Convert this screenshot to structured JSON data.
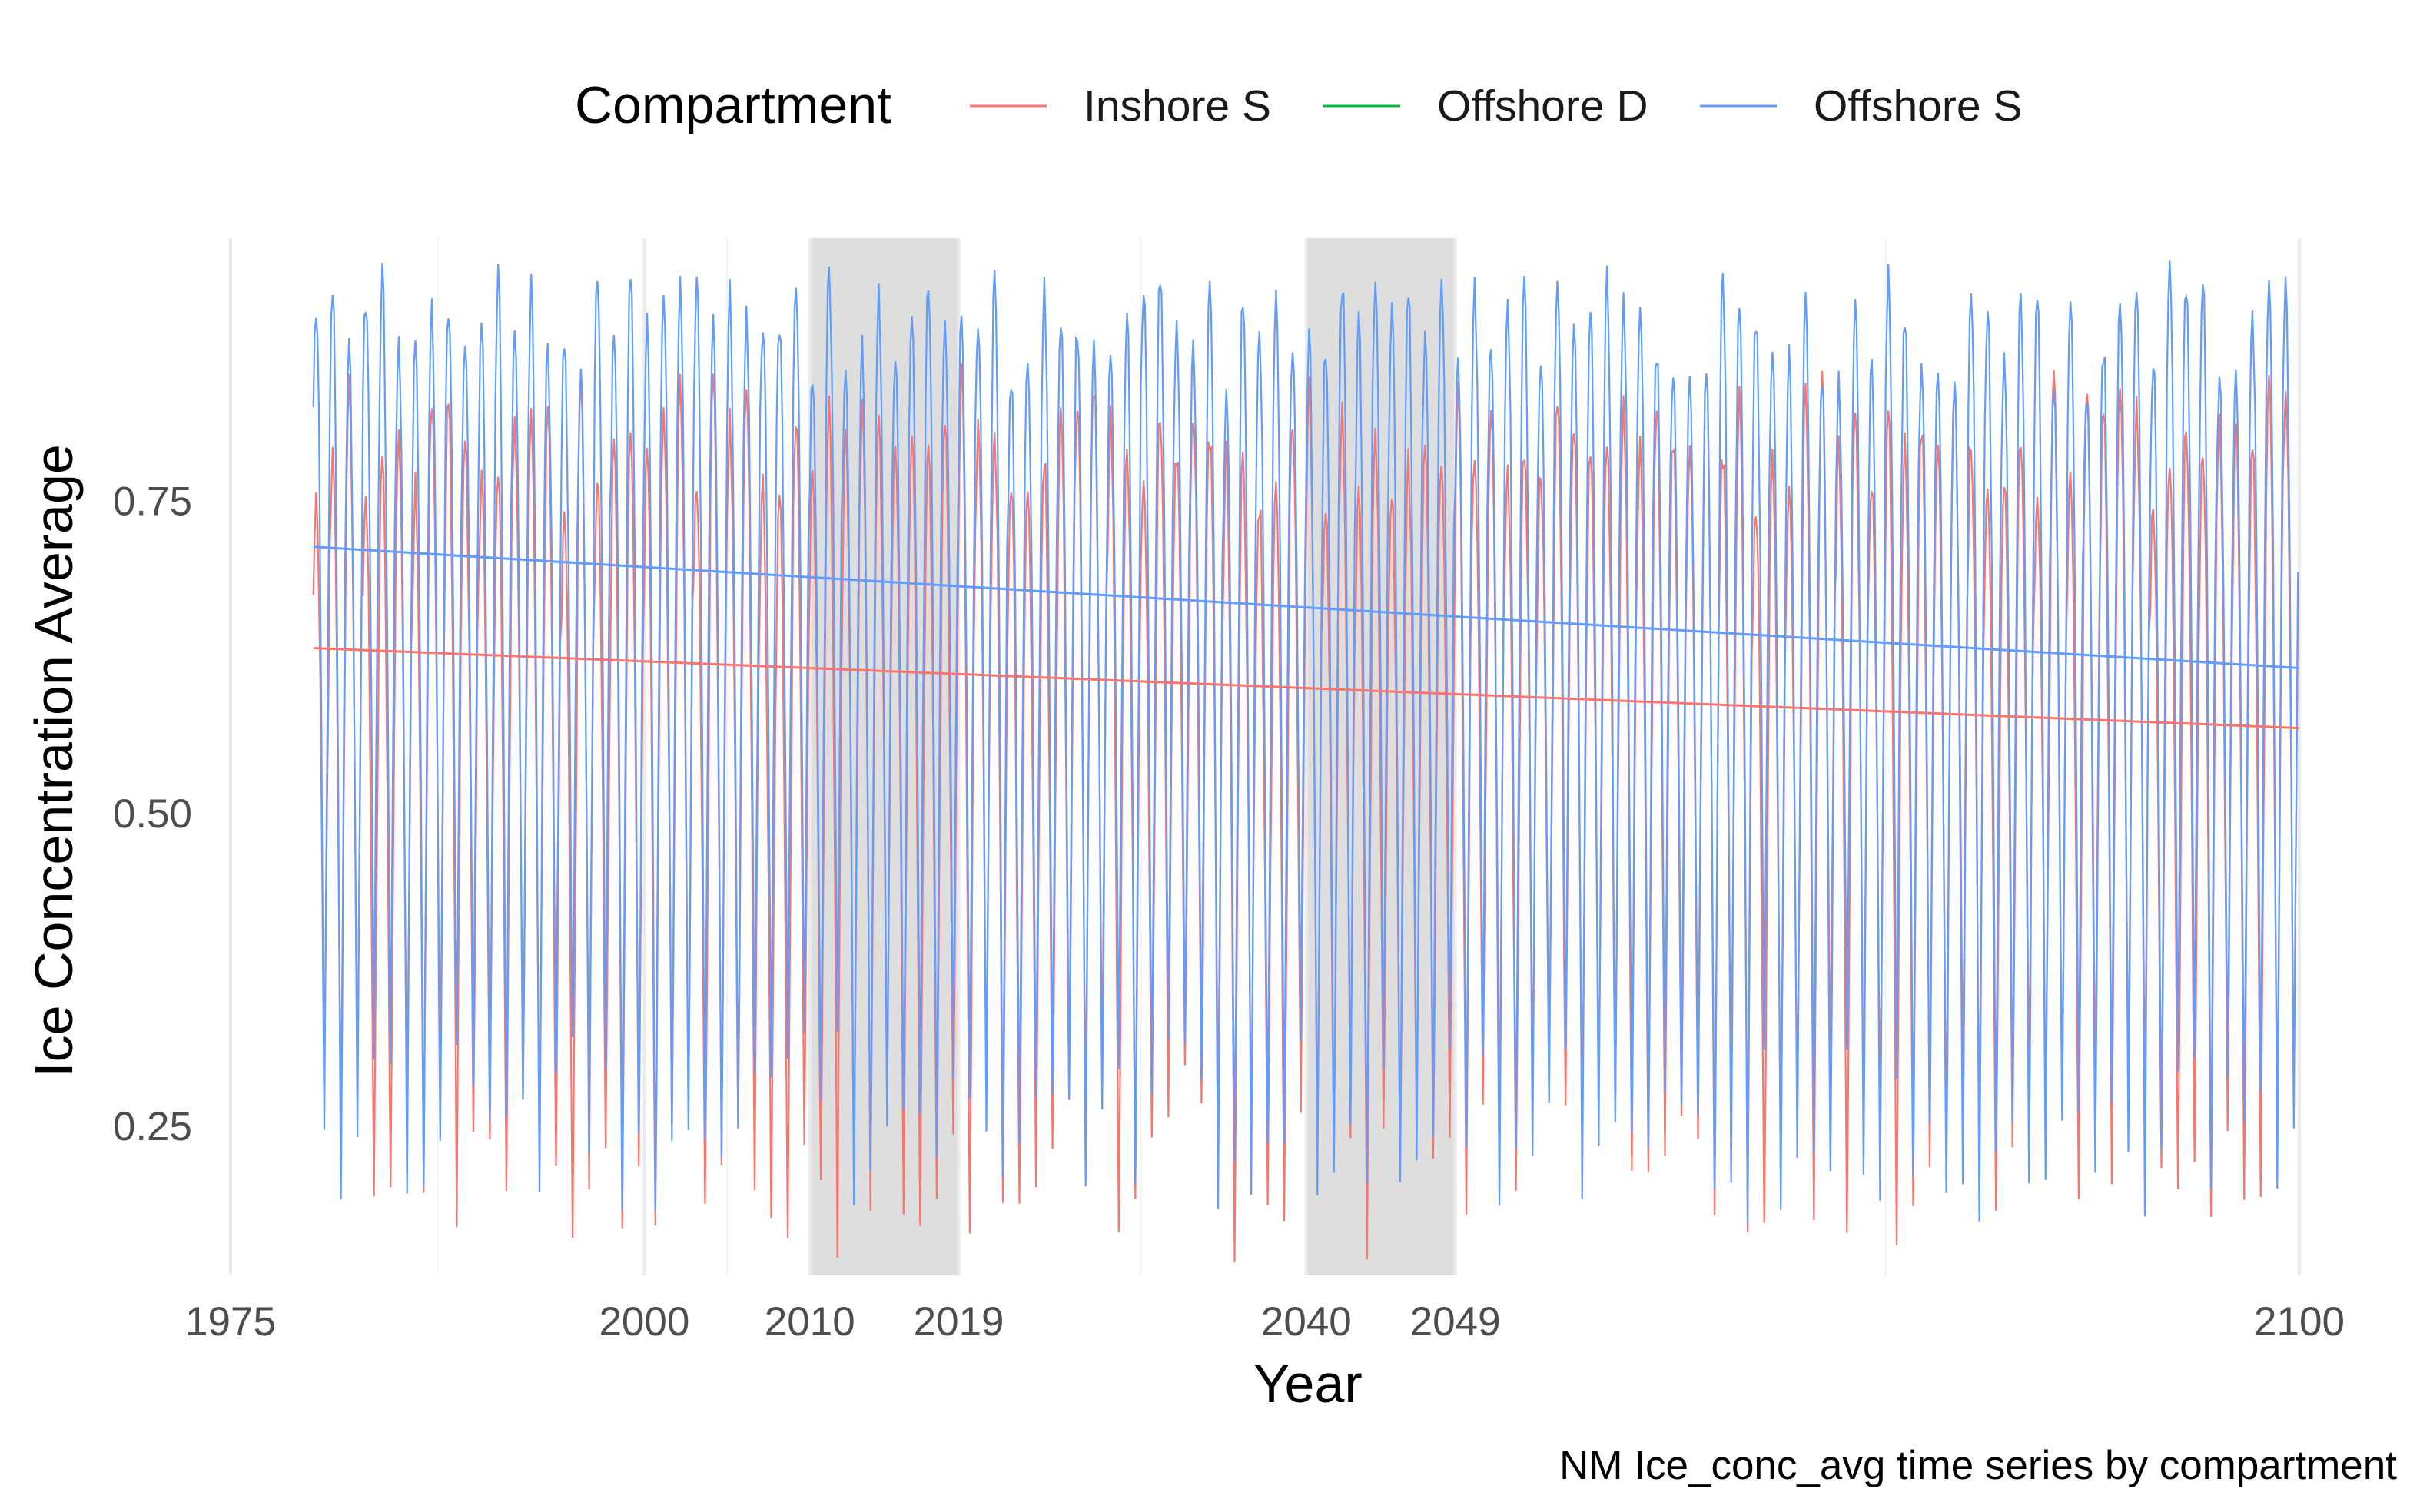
{
  "chart_data": {
    "type": "line",
    "title": "",
    "caption": "NM Ice_conc_avg time series by compartment",
    "xlabel": "Year",
    "ylabel": "Ice Concentration Average",
    "xlim": [
      1975,
      2100
    ],
    "ylim": [
      0.13,
      0.96
    ],
    "x_ticks": [
      1975,
      2000,
      2010,
      2019,
      2040,
      2049,
      2100
    ],
    "x_tick_labels": [
      "1975",
      "2000",
      "2010",
      "2019",
      "2040",
      "2049",
      "2100"
    ],
    "y_ticks": [
      0.25,
      0.5,
      0.75
    ],
    "y_tick_labels": [
      "0.25",
      "0.50",
      "0.75"
    ],
    "x_minor_gridlines": [
      1987.5,
      2005,
      2030,
      2075
    ],
    "grid": true,
    "legend": {
      "position": "top",
      "title": "Compartment",
      "entries": [
        "Inshore S",
        "Offshore D",
        "Offshore S"
      ]
    },
    "shaded_periods": [
      {
        "start": 2010,
        "end": 2019
      },
      {
        "start": 2040,
        "end": 2049
      }
    ],
    "series": [
      {
        "name": "Inshore S",
        "color": "#F8766D",
        "kind": "monthly_seasonal",
        "x_range": [
          1980,
          2100
        ],
        "seasonal_peak_mean": 0.8,
        "seasonal_trough_mean": 0.22,
        "trend_line": {
          "x": [
            1980,
            2100
          ],
          "y": [
            0.632,
            0.568
          ]
        }
      },
      {
        "name": "Offshore D",
        "color": "#00BA38",
        "values": []
      },
      {
        "name": "Offshore S",
        "color": "#619CFF",
        "kind": "monthly_seasonal",
        "x_range": [
          1980,
          2100
        ],
        "seasonal_peak_mean": 0.89,
        "seasonal_trough_mean": 0.25,
        "trend_line": {
          "x": [
            1980,
            2100
          ],
          "y": [
            0.713,
            0.616
          ]
        }
      }
    ]
  }
}
